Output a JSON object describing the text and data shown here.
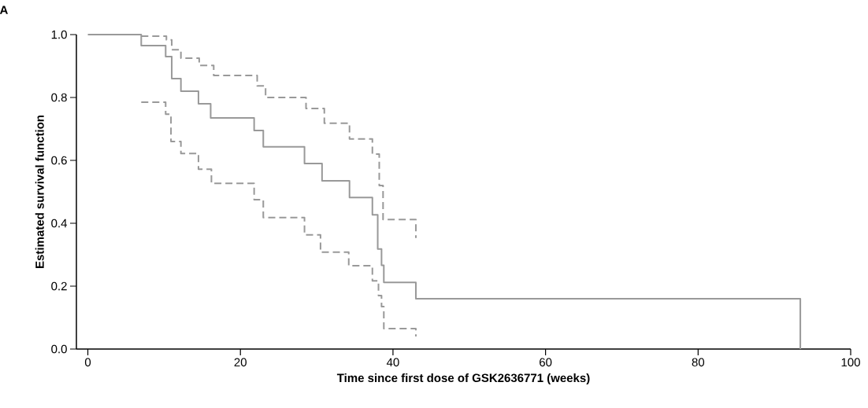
{
  "chart_data": {
    "type": "step",
    "xlabel": "Time since first dose of GSK2636771 (weeks)",
    "ylabel": "Estimated survival function",
    "annotations": [
      "A"
    ],
    "xlim": [
      -1.5,
      100
    ],
    "xticks": [
      0,
      20,
      40,
      60,
      80,
      100
    ],
    "ylim": [
      0,
      1.0
    ],
    "yticks": [
      {
        "value": 0,
        "label": "0.0"
      },
      0.2,
      0.4,
      0.6,
      0.8,
      {
        "value": 1.0,
        "label": "1.0"
      }
    ],
    "grid": false,
    "marker": "none",
    "series": [
      {
        "color": "#999999",
        "line_style": "solid",
        "x": [
          0,
          7,
          10.2,
          11,
          12.2,
          14.5,
          16.1,
          21.8,
          23,
          28.4,
          30.7,
          34.3,
          37.3,
          38,
          38.5,
          38.8,
          43,
          93.4
        ],
        "values": [
          1.0,
          0.965,
          0.93,
          0.86,
          0.82,
          0.78,
          0.735,
          0.695,
          0.643,
          0.59,
          0.535,
          0.482,
          0.427,
          0.318,
          0.266,
          0.212,
          0.16,
          0
        ]
      },
      {
        "color": "#999999",
        "line_style": "dashed",
        "x": [
          7,
          10.3,
          11,
          12.2,
          14.6,
          16.5,
          22.2,
          23.3,
          28.6,
          31,
          34.3,
          37.3,
          38.2,
          38.7,
          43
        ],
        "values": [
          0.995,
          0.983,
          0.952,
          0.925,
          0.902,
          0.87,
          0.837,
          0.8,
          0.765,
          0.718,
          0.668,
          0.62,
          0.52,
          0.412,
          0.353
        ]
      },
      {
        "color": "#999999",
        "line_style": "dashed",
        "x": [
          7,
          10.2,
          10.9,
          12.2,
          14.5,
          16.2,
          21.8,
          23,
          28.4,
          30.5,
          34.2,
          37.3,
          38.1,
          38.5,
          38.8,
          43
        ],
        "values": [
          0.785,
          0.747,
          0.66,
          0.622,
          0.572,
          0.527,
          0.475,
          0.418,
          0.363,
          0.308,
          0.265,
          0.217,
          0.17,
          0.135,
          0.065,
          0.04
        ]
      }
    ]
  }
}
